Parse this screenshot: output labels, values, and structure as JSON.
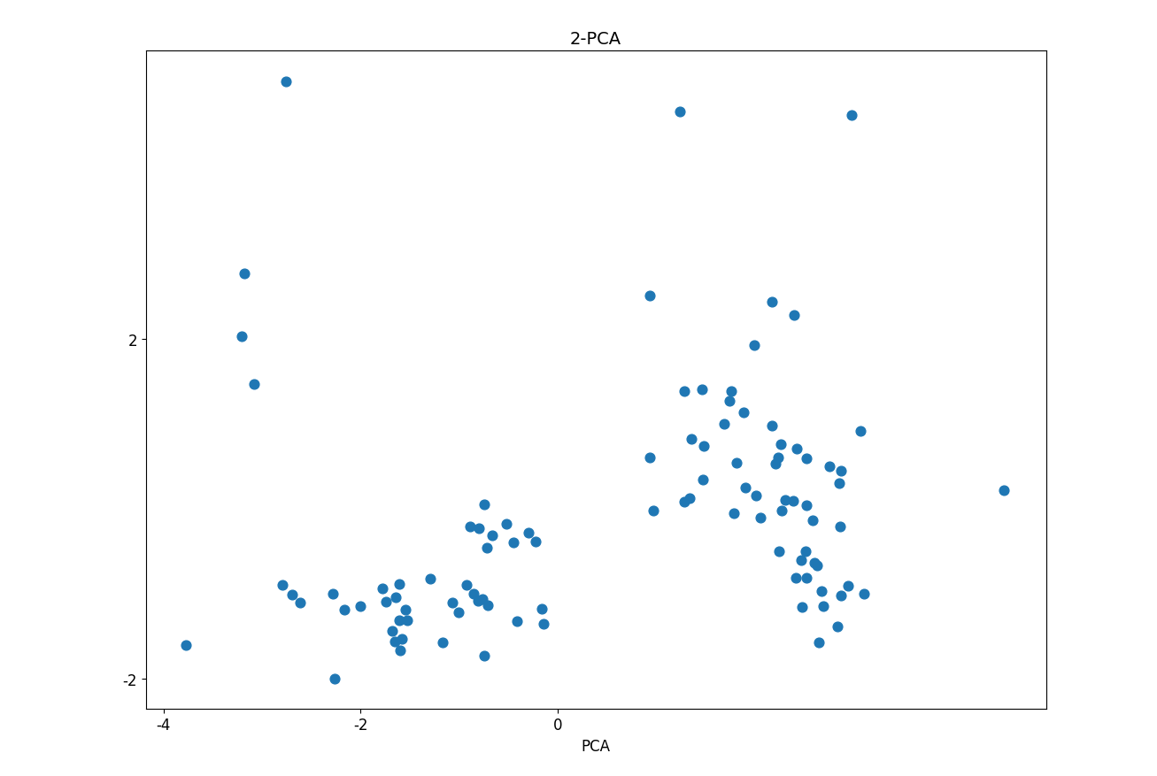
{
  "chart_data": {
    "type": "scatter",
    "title": "2-PCA",
    "x_label": "PCA",
    "color": "#1f77b4",
    "x": [
      -2.76,
      1.24,
      2.99,
      -3.18,
      -3.21,
      -3.08,
      -3.77,
      2.65,
      2.84,
      4.53,
      -2.26,
      0.94,
      2.18,
      2.4,
      2.0,
      1.29,
      1.47,
      1.76,
      1.75,
      1.89,
      2.18,
      3.08,
      1.36,
      1.49,
      1.69,
      2.27,
      2.43,
      2.24,
      2.21,
      1.82,
      2.53,
      2.76,
      2.88,
      2.86,
      0.94,
      1.48,
      1.91,
      2.02,
      2.31,
      2.39,
      2.53,
      1.29,
      1.34,
      0.97,
      1.79,
      2.06,
      2.28,
      2.59,
      2.87,
      2.25,
      2.52,
      2.47,
      2.61,
      2.64,
      2.42,
      2.53,
      2.68,
      2.88,
      2.95,
      3.11,
      2.48,
      2.7,
      -0.74,
      -0.89,
      -0.8,
      -0.52,
      -0.66,
      -0.72,
      -0.45,
      -0.29,
      -0.22,
      -2.79,
      -2.69,
      -2.61,
      -2.28,
      -2.16,
      -2.0,
      -1.78,
      -1.74,
      -1.64,
      -1.61,
      -1.54,
      -1.61,
      -1.53,
      -1.68,
      -1.65,
      -1.58,
      -1.6,
      -1.17,
      -1.07,
      -1.0,
      -0.92,
      -0.85,
      -0.76,
      -0.71,
      -0.81,
      -0.41,
      -0.16,
      -0.14,
      -0.74,
      -1.29
    ],
    "y": [
      5.03,
      4.68,
      4.64,
      2.77,
      2.03,
      1.47,
      -1.6,
      -1.57,
      -1.39,
      0.22,
      -2.0,
      2.51,
      2.44,
      2.28,
      1.93,
      1.39,
      1.41,
      1.39,
      1.27,
      1.14,
      0.98,
      0.92,
      0.82,
      0.74,
      1.0,
      0.76,
      0.71,
      0.61,
      0.53,
      0.54,
      0.6,
      0.5,
      0.45,
      0.3,
      0.61,
      0.35,
      0.25,
      0.16,
      0.11,
      0.09,
      0.04,
      0.08,
      0.13,
      -0.02,
      -0.05,
      -0.1,
      -0.02,
      -0.13,
      -0.21,
      -0.5,
      -0.5,
      -0.6,
      -0.63,
      -0.67,
      -0.81,
      -0.81,
      -0.97,
      -1.02,
      -0.91,
      -1.0,
      -1.16,
      -1.14,
      0.05,
      -0.21,
      -0.23,
      -0.18,
      -0.31,
      -0.46,
      -0.39,
      -0.28,
      -0.38,
      -0.9,
      -1.01,
      -1.1,
      -1.0,
      -1.19,
      -1.15,
      -0.94,
      -1.09,
      -1.04,
      -0.88,
      -1.19,
      -1.31,
      -1.31,
      -1.44,
      -1.56,
      -1.53,
      -1.67,
      -1.57,
      -1.1,
      -1.22,
      -0.9,
      -1.0,
      -1.06,
      -1.13,
      -1.08,
      -1.32,
      -1.18,
      -1.35,
      -1.73,
      -0.82
    ],
    "xlim": [
      -4.18,
      4.96
    ],
    "ylim": [
      -2.35,
      5.4
    ],
    "xticks": [
      -4,
      -2,
      0
    ],
    "yticks": [
      -2,
      2
    ]
  }
}
